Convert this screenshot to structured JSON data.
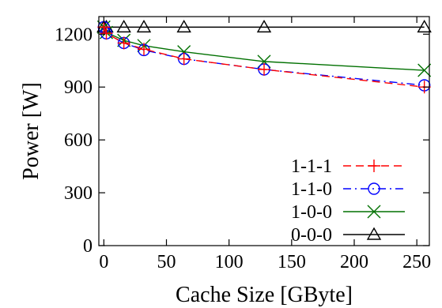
{
  "chart_data": {
    "type": "line",
    "title": "",
    "xlabel": "Cache Size [GByte]",
    "ylabel": "Power [W]",
    "xlim": [
      -4,
      260
    ],
    "ylim": [
      0,
      1300
    ],
    "xticks": [
      0,
      50,
      100,
      150,
      200,
      250
    ],
    "yticks": [
      0,
      300,
      600,
      900,
      1200
    ],
    "grid": false,
    "legend_position": "bottom-right",
    "series": [
      {
        "name": "1-1-1",
        "color": "#ff0000",
        "dash": "dashed",
        "marker": "plus",
        "x": [
          0,
          2,
          16,
          32,
          64,
          128,
          256
        ],
        "y": [
          1240,
          1205,
          1150,
          1115,
          1060,
          1000,
          900
        ]
      },
      {
        "name": "1-1-0",
        "color": "#0000ff",
        "dash": "dashdot",
        "marker": "circle",
        "x": [
          0,
          2,
          16,
          32,
          64,
          128,
          256
        ],
        "y": [
          1240,
          1205,
          1150,
          1110,
          1060,
          1000,
          910
        ]
      },
      {
        "name": "1-0-0",
        "color": "#007000",
        "dash": "solid",
        "marker": "x",
        "x": [
          0,
          2,
          16,
          32,
          64,
          128,
          256
        ],
        "y": [
          1240,
          1210,
          1165,
          1135,
          1100,
          1045,
          995
        ]
      },
      {
        "name": "0-0-0",
        "color": "#000000",
        "dash": "solid",
        "marker": "triangle",
        "x": [
          0,
          2,
          16,
          32,
          64,
          128,
          256
        ],
        "y": [
          1240,
          1240,
          1240,
          1240,
          1240,
          1240,
          1240
        ]
      }
    ]
  }
}
